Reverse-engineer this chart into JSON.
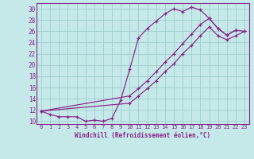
{
  "xlabel": "Windchill (Refroidissement éolien,°C)",
  "ylabel_ticks": [
    10,
    12,
    14,
    16,
    18,
    20,
    22,
    24,
    26,
    28,
    30
  ],
  "xticks": [
    0,
    1,
    2,
    3,
    4,
    5,
    6,
    7,
    8,
    9,
    10,
    11,
    12,
    13,
    14,
    15,
    16,
    17,
    18,
    19,
    20,
    21,
    22,
    23
  ],
  "xlim": [
    -0.5,
    23.5
  ],
  "ylim": [
    9.5,
    31.0
  ],
  "bg_color": "#c5e8e8",
  "line_color": "#882288",
  "grid_color": "#9ecece",
  "curves": [
    {
      "x": [
        0,
        1,
        2,
        3,
        4,
        5,
        6,
        7,
        8,
        9,
        10,
        11,
        12,
        13,
        14,
        15,
        16,
        17,
        18,
        19,
        20,
        21,
        22
      ],
      "y": [
        11.8,
        11.2,
        10.8,
        10.8,
        10.8,
        10.0,
        10.2,
        10.0,
        10.5,
        13.8,
        19.2,
        24.8,
        26.5,
        27.8,
        29.1,
        30.0,
        29.5,
        30.3,
        29.8,
        28.3,
        26.5,
        25.3,
        26.2
      ]
    },
    {
      "x": [
        0,
        10,
        11,
        12,
        13,
        14,
        15,
        16,
        17,
        18,
        19,
        20,
        21,
        22,
        23
      ],
      "y": [
        11.8,
        14.5,
        15.8,
        17.2,
        18.8,
        20.5,
        22.0,
        23.8,
        25.5,
        27.2,
        28.3,
        26.5,
        25.3,
        26.2,
        26.0
      ]
    },
    {
      "x": [
        0,
        10,
        11,
        12,
        13,
        14,
        15,
        16,
        17,
        18,
        19,
        20,
        21,
        22,
        23
      ],
      "y": [
        11.8,
        13.2,
        14.5,
        15.8,
        17.2,
        18.8,
        20.2,
        22.0,
        23.5,
        25.2,
        26.8,
        25.2,
        24.5,
        25.2,
        26.0
      ]
    }
  ]
}
